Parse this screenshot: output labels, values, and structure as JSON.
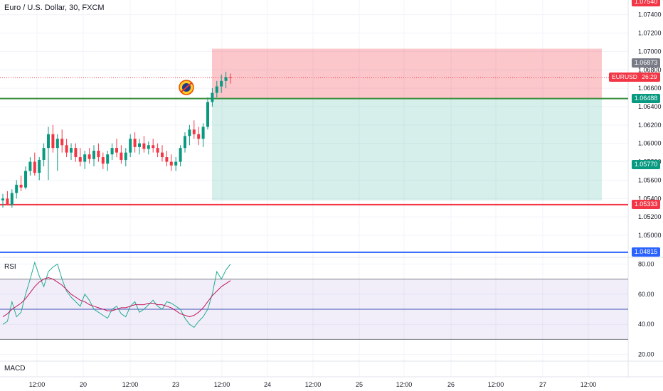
{
  "header": {
    "title": "Euro / U.S. Dollar, 30, FXCM"
  },
  "price_axis": {
    "labels": [
      "1.07400",
      "1.07200",
      "1.07000",
      "1.06800",
      "1.06600",
      "1.06400",
      "1.06200",
      "1.06000",
      "1.05800",
      "1.05600",
      "1.05400",
      "1.05200",
      "1.05000"
    ],
    "values": [
      1.074,
      1.072,
      1.07,
      1.068,
      1.066,
      1.064,
      1.062,
      1.06,
      1.058,
      1.056,
      1.054,
      1.052,
      1.05
    ],
    "range": [
      1.0476,
      1.0756
    ]
  },
  "price_tags": {
    "top": {
      "label": "1.07540",
      "value": 1.0754,
      "color": "#f23645"
    },
    "target": {
      "label": "1.06873",
      "value": 1.06873,
      "color": "#787b86"
    },
    "green_line": {
      "label": "1.06488",
      "value": 1.06488,
      "color": "#089981"
    },
    "stop_tag": {
      "label": "1.05770",
      "value": 1.0577,
      "color": "#089981"
    },
    "red_line": {
      "label": "1.05333",
      "value": 1.05333,
      "color": "#f23645"
    },
    "blue_line": {
      "label": "1.04815",
      "value": 1.04815,
      "color": "#2962ff"
    }
  },
  "current_price": {
    "symbol": "EURUSD",
    "countdown": "26:29",
    "value": 1.06715,
    "color": "#f23645"
  },
  "position_box": {
    "top": 1.0703,
    "entry": 1.06488,
    "bottom": 1.0538,
    "profit_color": "#f23645",
    "loss_color": "#089981"
  },
  "x_axis": {
    "labels": [
      "12:00",
      "20",
      "12:00",
      "23",
      "12:00",
      "24",
      "12:00",
      "25",
      "12:00",
      "26",
      "12:00",
      "27",
      "12:00"
    ]
  },
  "rsi": {
    "label": "RSI",
    "axis_labels": [
      "80.00",
      "60.00",
      "40.00",
      "20.00"
    ],
    "axis_values": [
      80,
      60,
      40,
      20
    ],
    "range": [
      17,
      83
    ],
    "upper": 70,
    "middle": 50,
    "lower": 30,
    "rsi_color": "#22ab94",
    "ma_color": "#c2185b",
    "band_color": "#7e57c2"
  },
  "macd": {
    "label": "MACD"
  },
  "chart_data": {
    "type": "candlestick",
    "title": "Euro / U.S. Dollar, 30, FXCM",
    "ylim": [
      1.0476,
      1.0756
    ],
    "candles": [
      [
        1.0538,
        1.0545,
        1.053,
        1.054
      ],
      [
        1.054,
        1.0548,
        1.0535,
        1.0533
      ],
      [
        1.0533,
        1.055,
        1.053,
        1.0546
      ],
      [
        1.0546,
        1.056,
        1.054,
        1.0555
      ],
      [
        1.0555,
        1.0565,
        1.0548,
        1.0552
      ],
      [
        1.0552,
        1.0575,
        1.055,
        1.057
      ],
      [
        1.057,
        1.0585,
        1.0565,
        1.058
      ],
      [
        1.058,
        1.059,
        1.0565,
        1.0568
      ],
      [
        1.0568,
        1.0585,
        1.056,
        1.0582
      ],
      [
        1.0582,
        1.06,
        1.0575,
        1.0595
      ],
      [
        1.0595,
        1.0618,
        1.056,
        1.061
      ],
      [
        1.061,
        1.062,
        1.059,
        1.0595
      ],
      [
        1.0595,
        1.061,
        1.057,
        1.0605
      ],
      [
        1.0605,
        1.0615,
        1.059,
        1.0598
      ],
      [
        1.0598,
        1.0605,
        1.0585,
        1.059
      ],
      [
        1.059,
        1.06,
        1.0582,
        1.0595
      ],
      [
        1.0595,
        1.06,
        1.058,
        1.0585
      ],
      [
        1.0585,
        1.0595,
        1.0575,
        1.058
      ],
      [
        1.058,
        1.0592,
        1.0572,
        1.0588
      ],
      [
        1.0588,
        1.0595,
        1.0578,
        1.0583
      ],
      [
        1.0583,
        1.0598,
        1.0575,
        1.0592
      ],
      [
        1.0592,
        1.06,
        1.058,
        1.0585
      ],
      [
        1.0585,
        1.059,
        1.0572,
        1.0578
      ],
      [
        1.0578,
        1.0592,
        1.057,
        1.0588
      ],
      [
        1.0588,
        1.06,
        1.0582,
        1.0595
      ],
      [
        1.0595,
        1.0605,
        1.0585,
        1.059
      ],
      [
        1.059,
        1.0598,
        1.0578,
        1.0582
      ],
      [
        1.0582,
        1.0595,
        1.0575,
        1.059
      ],
      [
        1.059,
        1.061,
        1.0585,
        1.0605
      ],
      [
        1.0605,
        1.0612,
        1.059,
        1.0596
      ],
      [
        1.0596,
        1.0605,
        1.0588,
        1.06
      ],
      [
        1.06,
        1.0608,
        1.059,
        1.0594
      ],
      [
        1.0594,
        1.0602,
        1.0588,
        1.0598
      ],
      [
        1.0598,
        1.0605,
        1.059,
        1.0595
      ],
      [
        1.0595,
        1.06,
        1.0585,
        1.059
      ],
      [
        1.059,
        1.0598,
        1.058,
        1.0585
      ],
      [
        1.0585,
        1.0592,
        1.0575,
        1.058
      ],
      [
        1.058,
        1.0588,
        1.057,
        1.0576
      ],
      [
        1.0576,
        1.0585,
        1.057,
        1.058
      ],
      [
        1.058,
        1.0598,
        1.0575,
        1.0595
      ],
      [
        1.0595,
        1.0612,
        1.059,
        1.0608
      ],
      [
        1.0608,
        1.062,
        1.0598,
        1.0615
      ],
      [
        1.0615,
        1.0625,
        1.0605,
        1.061
      ],
      [
        1.061,
        1.0618,
        1.0598,
        1.0605
      ],
      [
        1.0605,
        1.0622,
        1.0596,
        1.0618
      ],
      [
        1.0618,
        1.065,
        1.0615,
        1.0645
      ],
      [
        1.0645,
        1.066,
        1.064,
        1.0655
      ],
      [
        1.0655,
        1.0668,
        1.065,
        1.0662
      ],
      [
        1.0662,
        1.0675,
        1.0655,
        1.0668
      ],
      [
        1.0668,
        1.0678,
        1.066,
        1.0672
      ],
      [
        1.0672,
        1.0676,
        1.0665,
        1.06715
      ]
    ],
    "rsi_values": [
      40,
      42,
      55,
      45,
      48,
      60,
      70,
      81,
      72,
      65,
      75,
      78,
      80,
      70,
      62,
      58,
      55,
      52,
      60,
      56,
      50,
      48,
      46,
      44,
      50,
      52,
      47,
      45,
      52,
      55,
      48,
      50,
      53,
      56,
      52,
      50,
      55,
      54,
      52,
      50,
      44,
      40,
      38,
      42,
      45,
      50,
      60,
      75,
      70,
      76,
      80
    ],
    "rsi_ma": [
      45,
      47,
      50,
      52,
      54,
      57,
      61,
      65,
      68,
      70,
      71,
      70,
      68,
      66,
      63,
      60,
      58,
      56,
      55,
      53,
      52,
      51,
      50,
      49,
      49,
      50,
      51,
      51,
      52,
      53,
      53,
      53,
      54,
      54,
      53,
      53,
      52,
      51,
      49,
      47,
      46,
      45,
      46,
      48,
      51,
      55,
      59,
      62,
      65,
      67,
      69
    ]
  }
}
